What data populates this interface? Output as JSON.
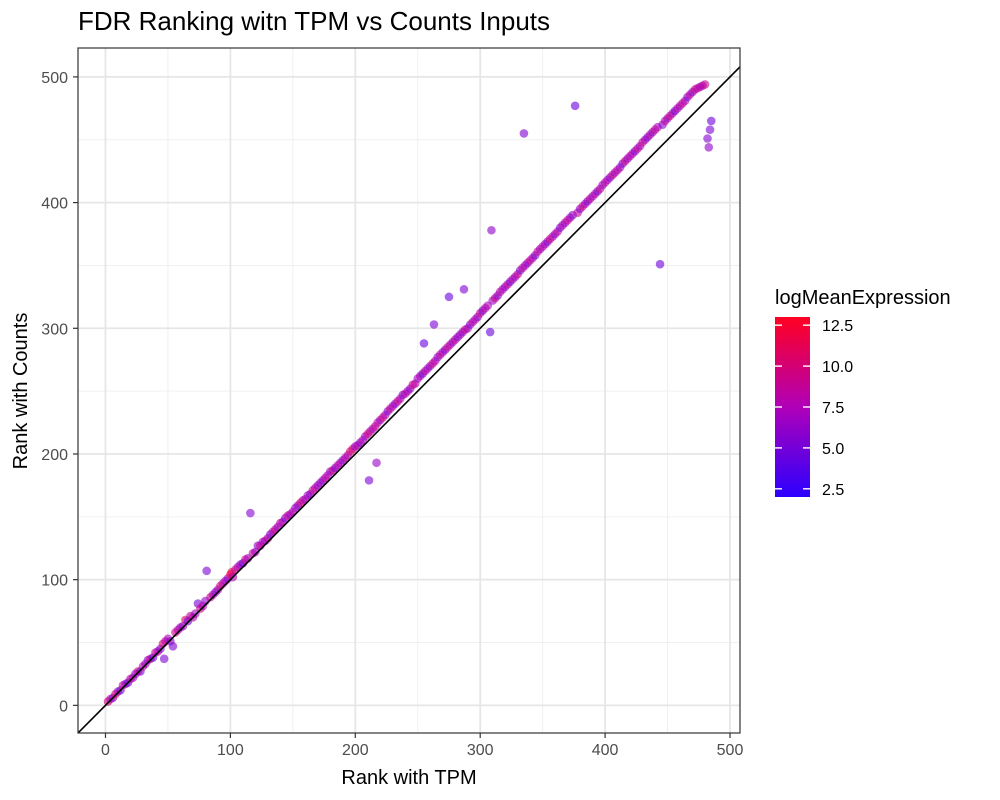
{
  "chart_data": {
    "type": "scatter",
    "title": "FDR Ranking witn TPM vs Counts Inputs",
    "xlabel": "Rank with TPM",
    "ylabel": "Rank with Counts",
    "xlim": [
      -22,
      508
    ],
    "ylim": [
      -22,
      523
    ],
    "xticks": [
      0,
      100,
      200,
      300,
      400,
      500
    ],
    "yticks": [
      0,
      100,
      200,
      300,
      400,
      500
    ],
    "xtick_labels": [
      "0",
      "100",
      "200",
      "300",
      "400",
      "500"
    ],
    "ytick_labels": [
      "0",
      "100",
      "200",
      "300",
      "400",
      "500"
    ],
    "grid": true,
    "reference_line": {
      "slope": 1,
      "intercept": 0,
      "color": "#000000"
    },
    "color_scale": {
      "title": "logMeanExpression",
      "low_color": "#2b00ff",
      "mid_color": "#b000b8",
      "high_color": "#ff0022",
      "range": [
        2.0,
        13.0
      ],
      "breaks": [
        2.5,
        5.0,
        7.5,
        10.0,
        12.5
      ],
      "break_labels": [
        "2.5",
        "5.0",
        "7.5",
        "10.0",
        "12.5"
      ]
    },
    "points": [
      [
        2,
        3,
        9.5
      ],
      [
        4,
        5,
        8.2
      ],
      [
        6,
        6,
        6.1
      ],
      [
        8,
        9,
        10.2
      ],
      [
        10,
        11,
        7.4
      ],
      [
        12,
        12,
        5.2
      ],
      [
        14,
        16,
        9.1
      ],
      [
        16,
        17,
        6.8
      ],
      [
        18,
        18,
        4.9
      ],
      [
        20,
        21,
        8.7
      ],
      [
        22,
        22,
        7.3
      ],
      [
        24,
        25,
        6.2
      ],
      [
        26,
        27,
        9.4
      ],
      [
        28,
        27,
        5.6
      ],
      [
        30,
        31,
        8.1
      ],
      [
        32,
        33,
        7.0
      ],
      [
        34,
        36,
        6.4
      ],
      [
        36,
        37,
        9.0
      ],
      [
        38,
        38,
        4.5
      ],
      [
        40,
        42,
        8.3
      ],
      [
        42,
        43,
        7.6
      ],
      [
        44,
        45,
        5.9
      ],
      [
        46,
        49,
        9.6
      ],
      [
        47,
        37,
        5.4
      ],
      [
        48,
        51,
        8.8
      ],
      [
        50,
        53,
        7.2
      ],
      [
        52,
        51,
        6.0
      ],
      [
        54,
        47,
        5.5
      ],
      [
        56,
        58,
        9.3
      ],
      [
        58,
        60,
        8.0
      ],
      [
        60,
        62,
        7.1
      ],
      [
        62,
        63,
        6.5
      ],
      [
        64,
        68,
        10.4
      ],
      [
        66,
        67,
        5.0
      ],
      [
        68,
        71,
        8.6
      ],
      [
        70,
        70,
        7.8
      ],
      [
        72,
        73,
        6.9
      ],
      [
        74,
        81,
        5.2
      ],
      [
        76,
        77,
        9.2
      ],
      [
        78,
        79,
        7.4
      ],
      [
        80,
        83,
        6.3
      ],
      [
        81,
        107,
        5.3
      ],
      [
        84,
        86,
        8.9
      ],
      [
        86,
        88,
        7.9
      ],
      [
        88,
        90,
        5.8
      ],
      [
        90,
        92,
        6.7
      ],
      [
        92,
        95,
        9.7
      ],
      [
        94,
        97,
        8.1
      ],
      [
        96,
        99,
        7.3
      ],
      [
        98,
        101,
        6.0
      ],
      [
        100,
        104,
        12.3
      ],
      [
        101,
        106,
        11.2
      ],
      [
        102,
        102,
        7.5
      ],
      [
        104,
        108,
        9.0
      ],
      [
        106,
        110,
        8.2
      ],
      [
        108,
        112,
        6.6
      ],
      [
        110,
        113,
        4.8
      ],
      [
        112,
        116,
        9.5
      ],
      [
        114,
        117,
        7.0
      ],
      [
        116,
        153,
        5.6
      ],
      [
        118,
        121,
        8.4
      ],
      [
        120,
        122,
        6.9
      ],
      [
        122,
        127,
        5.9
      ],
      [
        124,
        127,
        9.1
      ],
      [
        126,
        130,
        7.6
      ],
      [
        128,
        131,
        6.3
      ],
      [
        130,
        133,
        8.8
      ],
      [
        132,
        136,
        5.1
      ],
      [
        134,
        138,
        7.9
      ],
      [
        136,
        140,
        9.3
      ],
      [
        138,
        142,
        6.1
      ],
      [
        140,
        145,
        8.5
      ],
      [
        142,
        146,
        7.3
      ],
      [
        144,
        149,
        5.7
      ],
      [
        146,
        151,
        9.0
      ],
      [
        148,
        152,
        6.5
      ],
      [
        150,
        154,
        8.0
      ],
      [
        152,
        157,
        7.1
      ],
      [
        154,
        159,
        5.3
      ],
      [
        156,
        161,
        9.6
      ],
      [
        158,
        163,
        8.4
      ],
      [
        160,
        164,
        6.8
      ],
      [
        162,
        167,
        7.7
      ],
      [
        164,
        168,
        5.5
      ],
      [
        166,
        171,
        9.1
      ],
      [
        168,
        173,
        8.2
      ],
      [
        170,
        175,
        6.2
      ],
      [
        172,
        177,
        7.0
      ],
      [
        174,
        179,
        5.8
      ],
      [
        176,
        181,
        8.9
      ],
      [
        178,
        183,
        7.3
      ],
      [
        180,
        186,
        6.6
      ],
      [
        182,
        187,
        9.4
      ],
      [
        184,
        189,
        5.4
      ],
      [
        186,
        191,
        8.1
      ],
      [
        188,
        193,
        7.5
      ],
      [
        190,
        195,
        6.0
      ],
      [
        192,
        197,
        8.7
      ],
      [
        194,
        199,
        7.2
      ],
      [
        196,
        202,
        10.3
      ],
      [
        198,
        204,
        9.8
      ],
      [
        200,
        206,
        6.4
      ],
      [
        202,
        207,
        8.3
      ],
      [
        204,
        209,
        5.9
      ],
      [
        206,
        211,
        7.8
      ],
      [
        208,
        214,
        6.5
      ],
      [
        210,
        216,
        9.2
      ],
      [
        211,
        179,
        5.4
      ],
      [
        212,
        218,
        8.6
      ],
      [
        214,
        220,
        7.0
      ],
      [
        216,
        222,
        9.0
      ],
      [
        217,
        193,
        6.6
      ],
      [
        218,
        225,
        8.1
      ],
      [
        220,
        227,
        6.8
      ],
      [
        222,
        229,
        9.5
      ],
      [
        224,
        231,
        7.4
      ],
      [
        226,
        234,
        5.7
      ],
      [
        228,
        236,
        8.8
      ],
      [
        230,
        238,
        7.2
      ],
      [
        232,
        240,
        6.1
      ],
      [
        234,
        242,
        9.1
      ],
      [
        236,
        244,
        7.7
      ],
      [
        238,
        247,
        5.6
      ],
      [
        240,
        248,
        8.4
      ],
      [
        242,
        250,
        7.3
      ],
      [
        244,
        252,
        6.2
      ],
      [
        246,
        255,
        9.3
      ],
      [
        248,
        256,
        8.0
      ],
      [
        250,
        260,
        6.9
      ],
      [
        252,
        262,
        7.6
      ],
      [
        254,
        264,
        5.2
      ],
      [
        255,
        288,
        4.3
      ],
      [
        256,
        266,
        8.5
      ],
      [
        258,
        268,
        7.1
      ],
      [
        260,
        270,
        6.4
      ],
      [
        262,
        272,
        9.0
      ],
      [
        263,
        303,
        5.3
      ],
      [
        264,
        274,
        7.9
      ],
      [
        266,
        277,
        6.0
      ],
      [
        268,
        279,
        8.6
      ],
      [
        270,
        281,
        7.3
      ],
      [
        272,
        283,
        5.8
      ],
      [
        274,
        285,
        9.2
      ],
      [
        275,
        325,
        4.6
      ],
      [
        276,
        287,
        7.7
      ],
      [
        278,
        289,
        6.5
      ],
      [
        280,
        291,
        8.9
      ],
      [
        282,
        293,
        5.5
      ],
      [
        284,
        295,
        7.4
      ],
      [
        286,
        297,
        6.1
      ],
      [
        287,
        331,
        5.5
      ],
      [
        288,
        299,
        9.4
      ],
      [
        290,
        300,
        7.0
      ],
      [
        292,
        303,
        5.9
      ],
      [
        294,
        305,
        8.2
      ],
      [
        296,
        307,
        7.5
      ],
      [
        298,
        309,
        6.3
      ],
      [
        300,
        312,
        9.0
      ],
      [
        302,
        314,
        5.2
      ],
      [
        304,
        316,
        8.6
      ],
      [
        306,
        318,
        7.1
      ],
      [
        308,
        297,
        4.4
      ],
      [
        309,
        378,
        6.1
      ],
      [
        310,
        322,
        6.8
      ],
      [
        312,
        324,
        9.3
      ],
      [
        314,
        326,
        5.7
      ],
      [
        316,
        329,
        8.0
      ],
      [
        318,
        331,
        7.4
      ],
      [
        320,
        333,
        6.2
      ],
      [
        322,
        335,
        8.8
      ],
      [
        324,
        337,
        5.4
      ],
      [
        326,
        339,
        7.9
      ],
      [
        328,
        341,
        6.6
      ],
      [
        330,
        343,
        9.1
      ],
      [
        332,
        346,
        5.6
      ],
      [
        334,
        348,
        8.4
      ],
      [
        335,
        455,
        5.5
      ],
      [
        336,
        350,
        7.2
      ],
      [
        338,
        352,
        6.0
      ],
      [
        340,
        354,
        8.9
      ],
      [
        342,
        356,
        7.6
      ],
      [
        344,
        358,
        5.3
      ],
      [
        346,
        361,
        9.2
      ],
      [
        348,
        363,
        6.9
      ],
      [
        350,
        365,
        8.1
      ],
      [
        352,
        367,
        7.0
      ],
      [
        354,
        369,
        5.8
      ],
      [
        356,
        371,
        9.5
      ],
      [
        358,
        373,
        7.5
      ],
      [
        360,
        375,
        6.2
      ],
      [
        362,
        377,
        8.6
      ],
      [
        364,
        380,
        5.5
      ],
      [
        366,
        382,
        7.8
      ],
      [
        368,
        384,
        6.6
      ],
      [
        370,
        386,
        9.0
      ],
      [
        372,
        388,
        7.3
      ],
      [
        374,
        390,
        5.9
      ],
      [
        376,
        477,
        4.6
      ],
      [
        378,
        392,
        8.3
      ],
      [
        380,
        395,
        6.1
      ],
      [
        382,
        397,
        9.4
      ],
      [
        384,
        399,
        7.1
      ],
      [
        386,
        401,
        5.6
      ],
      [
        388,
        403,
        8.7
      ],
      [
        390,
        405,
        6.8
      ],
      [
        392,
        407,
        7.9
      ],
      [
        394,
        409,
        5.2
      ],
      [
        396,
        411,
        9.1
      ],
      [
        398,
        414,
        6.4
      ],
      [
        400,
        416,
        8.2
      ],
      [
        402,
        418,
        7.4
      ],
      [
        404,
        420,
        5.8
      ],
      [
        406,
        422,
        9.3
      ],
      [
        408,
        424,
        6.7
      ],
      [
        410,
        426,
        8.5
      ],
      [
        412,
        428,
        7.0
      ],
      [
        414,
        431,
        5.4
      ],
      [
        416,
        433,
        9.6
      ],
      [
        418,
        435,
        6.3
      ],
      [
        420,
        437,
        8.0
      ],
      [
        422,
        439,
        7.6
      ],
      [
        424,
        441,
        5.7
      ],
      [
        426,
        443,
        9.0
      ],
      [
        428,
        445,
        6.9
      ],
      [
        430,
        448,
        8.8
      ],
      [
        432,
        450,
        7.2
      ],
      [
        434,
        452,
        5.5
      ],
      [
        436,
        454,
        8.4
      ],
      [
        438,
        456,
        6.1
      ],
      [
        440,
        458,
        9.2
      ],
      [
        442,
        460,
        7.5
      ],
      [
        444,
        351,
        4.7
      ],
      [
        446,
        462,
        5.9
      ],
      [
        448,
        465,
        8.6
      ],
      [
        450,
        467,
        6.4
      ],
      [
        452,
        469,
        9.4
      ],
      [
        454,
        471,
        7.1
      ],
      [
        456,
        473,
        5.3
      ],
      [
        458,
        475,
        8.3
      ],
      [
        460,
        477,
        6.8
      ],
      [
        462,
        479,
        9.1
      ],
      [
        464,
        481,
        7.4
      ],
      [
        466,
        484,
        5.6
      ],
      [
        468,
        486,
        8.7
      ],
      [
        470,
        488,
        6.2
      ],
      [
        472,
        490,
        9.3
      ],
      [
        474,
        491,
        7.8
      ],
      [
        476,
        492,
        8.5
      ],
      [
        478,
        493,
        6.9
      ],
      [
        480,
        494,
        9.0
      ],
      [
        482,
        451,
        5.6
      ],
      [
        483,
        444,
        6.1
      ],
      [
        484,
        458,
        5.4
      ],
      [
        485,
        465,
        4.9
      ]
    ]
  }
}
